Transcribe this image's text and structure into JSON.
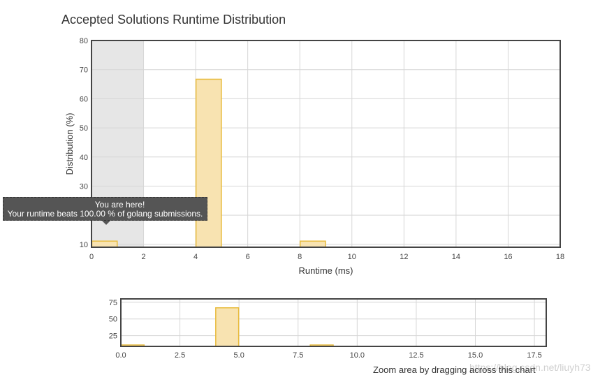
{
  "chart_data": [
    {
      "type": "bar",
      "title": "Accepted Solutions Runtime Distribution",
      "xlabel": "Runtime (ms)",
      "ylabel": "Distribution (%)",
      "xlim": [
        0,
        18
      ],
      "ylim": [
        9,
        80
      ],
      "x_ticks": [
        "0",
        "2",
        "4",
        "6",
        "8",
        "10",
        "12",
        "14",
        "16",
        "18"
      ],
      "y_ticks": [
        "10",
        "20",
        "30",
        "40",
        "50",
        "60",
        "70",
        "80"
      ],
      "bins": [
        {
          "start": 0,
          "end": 1,
          "value": 11.1
        },
        {
          "start": 4,
          "end": 5,
          "value": 66.7
        },
        {
          "start": 8,
          "end": 9,
          "value": 11.1
        }
      ],
      "highlight_range": [
        0,
        2
      ],
      "grid": true,
      "bar_color": "#f8e3b1",
      "bar_border": "#e8bb3c"
    },
    {
      "type": "bar",
      "title": "",
      "xlabel": "",
      "ylabel": "",
      "xlim": [
        0,
        18
      ],
      "ylim": [
        9,
        80
      ],
      "x_ticks": [
        "0.0",
        "2.5",
        "5.0",
        "7.5",
        "10.0",
        "12.5",
        "15.0",
        "17.5"
      ],
      "y_ticks": [
        "25",
        "50",
        "75"
      ],
      "bins": [
        {
          "start": 0,
          "end": 1,
          "value": 11.1
        },
        {
          "start": 4,
          "end": 5,
          "value": 66.7
        },
        {
          "start": 8,
          "end": 9,
          "value": 11.1
        }
      ],
      "grid": true,
      "bar_color": "#f8e3b1",
      "bar_border": "#e8bb3c"
    }
  ],
  "tooltip": {
    "line1": "You are here!",
    "line2": "Your runtime beats 100.00 % of golang submissions."
  },
  "zoom_hint": "Zoom area by dragging across this chart",
  "watermark": "https://blog.csdn.net/liuyh73"
}
